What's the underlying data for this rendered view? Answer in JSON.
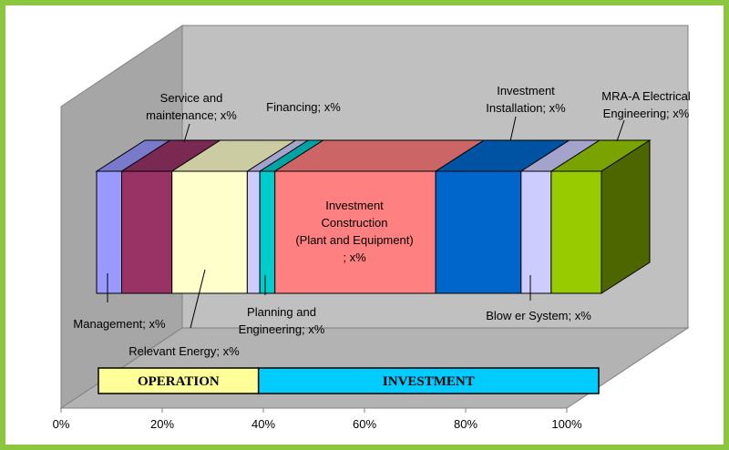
{
  "chart_data": {
    "type": "bar",
    "orientation": "horizontal-stacked-3d",
    "xlim": [
      0,
      100
    ],
    "x_ticks": [
      "0%",
      "20%",
      "40%",
      "60%",
      "80%",
      "100%"
    ],
    "series": [
      {
        "name": "Management; x%",
        "value": 5,
        "color": "#9999ff"
      },
      {
        "name": "Service and maintenance; x%",
        "value": 10,
        "color": "#993366"
      },
      {
        "name": "Relevant Energy; x%",
        "value": 15,
        "color": "#ffffcc"
      },
      {
        "name": "",
        "value": 2.5,
        "color": "#ccccff"
      },
      {
        "name": "Financing; x%",
        "value": 3,
        "color": "#00cccc"
      },
      {
        "name": "Investment Construction (Plant and Equipment) ; x%",
        "value": 32,
        "color": "#ff8080"
      },
      {
        "name": "Investment Installation; x%",
        "value": 17,
        "color": "#0066cc"
      },
      {
        "name": "Blow er System; x%",
        "value": 6,
        "color": "#ccccff"
      },
      {
        "name": "MRA-A Electrical Engineering; x%",
        "value": 10,
        "color": "#99cc00"
      }
    ],
    "labels": {
      "service": [
        "Service and",
        "maintenance; x%"
      ],
      "financing": "Financing; x%",
      "inv_install": [
        "Investment",
        "Installation; x%"
      ],
      "mra": [
        "MRA-A Electrical",
        "Engineering; x%"
      ],
      "construction": [
        "Investment",
        "Construction",
        "(Plant and Equipment)",
        "; x%"
      ],
      "management": "Management; x%",
      "planning": [
        "Planning and",
        "Engineering; x%"
      ],
      "relevant": "Relevant Energy; x%",
      "blower": "Blow er System; x%"
    },
    "bands": [
      {
        "label": "OPERATION",
        "from": 0,
        "to": 32,
        "color": "#ffff99"
      },
      {
        "label": "INVESTMENT",
        "from": 32,
        "to": 100,
        "color": "#00ccff"
      }
    ],
    "grid": false,
    "legend": "none"
  }
}
